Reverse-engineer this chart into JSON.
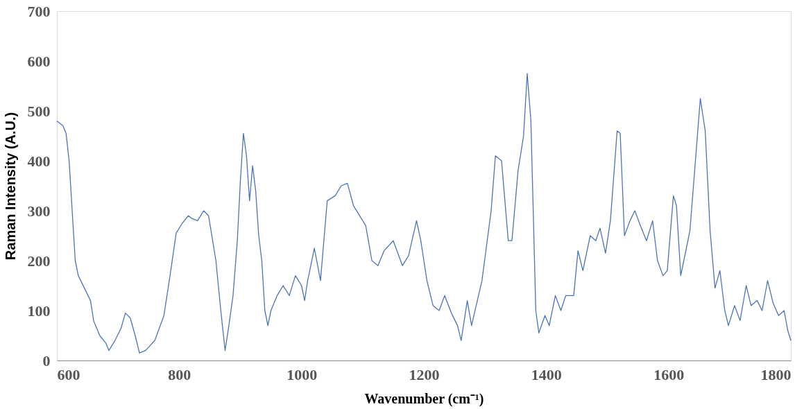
{
  "chart_data": {
    "type": "line",
    "xlabel": "Wavenumber (cm⁻¹)",
    "ylabel": "Raman Intensity (A.U.)",
    "xlim": [
      600,
      1800
    ],
    "xticks": [
      600,
      800,
      1000,
      1200,
      1400,
      1600,
      1800
    ],
    "ylim": [
      0,
      700
    ],
    "yticks": [
      0,
      100,
      200,
      300,
      400,
      500,
      600,
      700
    ],
    "grid": false,
    "legend": false,
    "marker": "none",
    "line_style": "solid",
    "series": [
      {
        "color": "#4a74b8",
        "x": [
          600,
          610,
          615,
          620,
          625,
          630,
          635,
          645,
          655,
          660,
          670,
          680,
          685,
          695,
          705,
          712,
          720,
          728,
          735,
          745,
          760,
          775,
          785,
          795,
          805,
          815,
          820,
          830,
          840,
          848,
          860,
          868,
          875,
          880,
          888,
          895,
          900,
          905,
          910,
          915,
          920,
          925,
          930,
          935,
          940,
          945,
          950,
          960,
          970,
          980,
          990,
          1000,
          1005,
          1010,
          1021,
          1031,
          1042,
          1055,
          1065,
          1075,
          1085,
          1095,
          1105,
          1115,
          1125,
          1135,
          1150,
          1165,
          1175,
          1188,
          1195,
          1205,
          1215,
          1225,
          1234,
          1245,
          1255,
          1261,
          1271,
          1278,
          1295,
          1310,
          1317,
          1327,
          1338,
          1344,
          1354,
          1363,
          1369,
          1375,
          1383,
          1388,
          1398,
          1405,
          1415,
          1424,
          1432,
          1445,
          1452,
          1460,
          1472,
          1481,
          1488,
          1497,
          1505,
          1516,
          1521,
          1528,
          1537,
          1545,
          1554,
          1564,
          1574,
          1582,
          1591,
          1598,
          1608,
          1613,
          1620,
          1625,
          1635,
          1644,
          1652,
          1660,
          1668,
          1676,
          1684,
          1692,
          1698,
          1708,
          1717,
          1727,
          1735,
          1745,
          1753,
          1762,
          1771,
          1780,
          1789,
          1795,
          1800
        ],
        "values": [
          480,
          470,
          455,
          400,
          300,
          200,
          170,
          145,
          120,
          80,
          50,
          35,
          20,
          40,
          65,
          95,
          85,
          50,
          15,
          20,
          40,
          90,
          170,
          255,
          275,
          290,
          285,
          280,
          300,
          290,
          200,
          100,
          20,
          60,
          130,
          240,
          360,
          455,
          410,
          320,
          390,
          340,
          250,
          200,
          100,
          70,
          100,
          130,
          150,
          130,
          170,
          150,
          120,
          160,
          225,
          160,
          320,
          330,
          350,
          355,
          310,
          290,
          270,
          200,
          190,
          220,
          240,
          190,
          210,
          280,
          240,
          160,
          110,
          100,
          130,
          95,
          70,
          40,
          120,
          70,
          160,
          300,
          410,
          400,
          240,
          240,
          380,
          450,
          575,
          480,
          100,
          55,
          90,
          70,
          130,
          100,
          130,
          130,
          220,
          180,
          250,
          240,
          265,
          215,
          280,
          460,
          455,
          250,
          280,
          300,
          270,
          240,
          280,
          200,
          170,
          180,
          330,
          310,
          170,
          200,
          260,
          400,
          525,
          460,
          260,
          145,
          180,
          100,
          70,
          110,
          80,
          150,
          110,
          120,
          100,
          160,
          115,
          90,
          100,
          60,
          40
        ]
      }
    ]
  }
}
